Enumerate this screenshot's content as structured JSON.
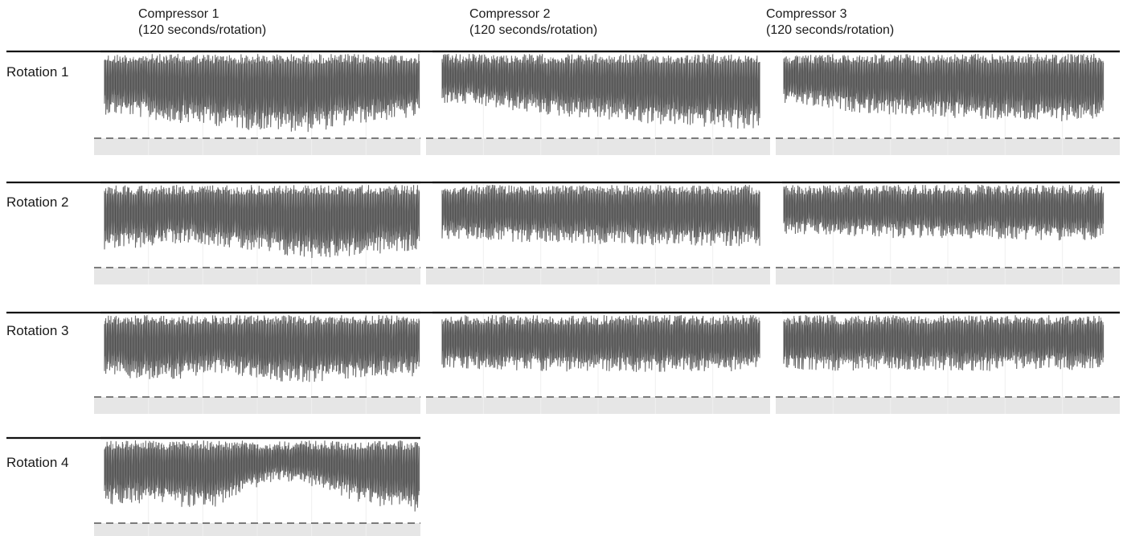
{
  "chart_data": {
    "type": "line",
    "columns": [
      {
        "name": "Compressor 1",
        "note": "(120 seconds/rotation)"
      },
      {
        "name": "Compressor 2",
        "note": "(120 seconds/rotation)"
      },
      {
        "name": "Compressor 3",
        "note": "(120 seconds/rotation)"
      }
    ],
    "rows": [
      "Rotation 1",
      "Rotation 2",
      "Rotation 3",
      "Rotation 4"
    ],
    "threshold_line": "dashed",
    "panels": [
      {
        "row": 0,
        "col": 0,
        "series": [
          0.7,
          0.72,
          0.78,
          0.8,
          0.83,
          0.87,
          0.88,
          0.9,
          0.86,
          0.8,
          0.76,
          0.74
        ]
      },
      {
        "row": 0,
        "col": 1,
        "series": [
          0.58,
          0.6,
          0.64,
          0.68,
          0.72,
          0.74,
          0.77,
          0.8,
          0.83,
          0.84,
          0.86,
          0.87
        ]
      },
      {
        "row": 0,
        "col": 2,
        "series": [
          0.58,
          0.62,
          0.66,
          0.69,
          0.71,
          0.73,
          0.74,
          0.76,
          0.77,
          0.78,
          0.77,
          0.74
        ]
      },
      {
        "row": 1,
        "col": 0,
        "series": [
          0.78,
          0.75,
          0.7,
          0.68,
          0.72,
          0.78,
          0.83,
          0.86,
          0.85,
          0.83,
          0.8,
          0.78
        ]
      },
      {
        "row": 1,
        "col": 1,
        "series": [
          0.64,
          0.65,
          0.66,
          0.68,
          0.68,
          0.7,
          0.7,
          0.71,
          0.71,
          0.72,
          0.72,
          0.72
        ]
      },
      {
        "row": 1,
        "col": 2,
        "series": [
          0.58,
          0.6,
          0.61,
          0.62,
          0.63,
          0.63,
          0.64,
          0.64,
          0.65,
          0.65,
          0.66,
          0.66
        ]
      },
      {
        "row": 2,
        "col": 0,
        "series": [
          0.72,
          0.76,
          0.78,
          0.74,
          0.7,
          0.74,
          0.78,
          0.8,
          0.78,
          0.74,
          0.72,
          0.74
        ]
      },
      {
        "row": 2,
        "col": 1,
        "series": [
          0.64,
          0.65,
          0.66,
          0.66,
          0.67,
          0.68,
          0.67,
          0.68,
          0.68,
          0.67,
          0.67,
          0.66
        ]
      },
      {
        "row": 2,
        "col": 2,
        "series": [
          0.64,
          0.66,
          0.67,
          0.66,
          0.65,
          0.66,
          0.66,
          0.67,
          0.65,
          0.64,
          0.66,
          0.65
        ]
      },
      {
        "row": 3,
        "col": 0,
        "series": [
          0.76,
          0.74,
          0.74,
          0.8,
          0.78,
          0.6,
          0.48,
          0.52,
          0.62,
          0.74,
          0.8,
          0.84
        ]
      }
    ],
    "xlabel": "",
    "ylabel": ""
  }
}
